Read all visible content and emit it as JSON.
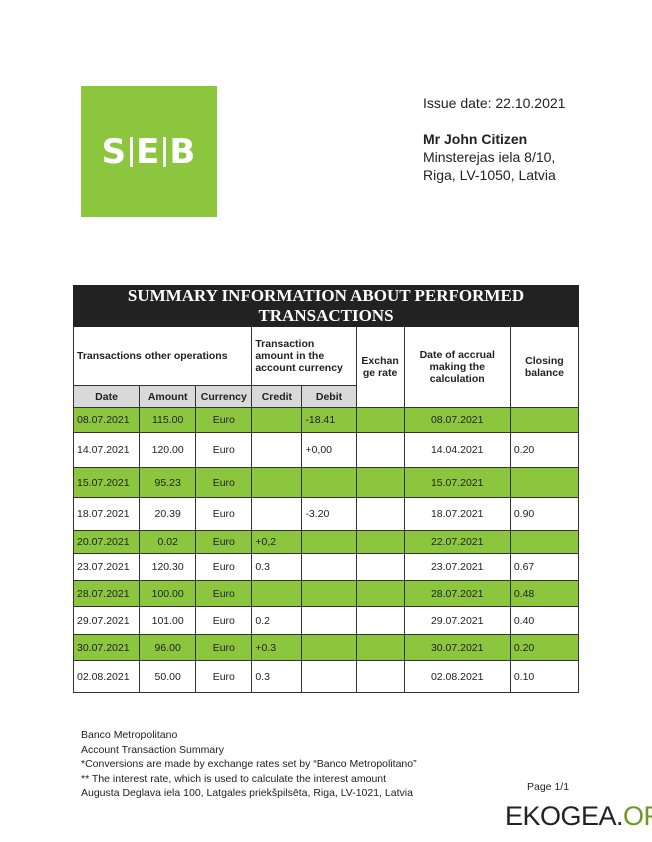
{
  "logo": {
    "text": "SEB",
    "color": "#8cc63f"
  },
  "header": {
    "issue_date": "Issue date: 22.10.2021",
    "name": "Mr John Citizen",
    "address_line1": "Minsterejas iela 8/10,",
    "address_line2": "Riga, LV-1050, Latvia"
  },
  "table": {
    "title": "SUMMARY INFORMATION ABOUT PERFORMED TRANSACTIONS",
    "group_headers": {
      "transactions": "Transactions other operations",
      "amount_account": "Transaction amount in the account currency",
      "exchange_rate": "Exchan ge rate",
      "date_accrual": "Date of accrual making the calculation",
      "closing_balance": "Closing balance"
    },
    "columns": [
      "Date",
      "Amount",
      "Currency",
      "Credit",
      "Debit"
    ],
    "rows": [
      {
        "date": "08.07.2021",
        "amount": "115.00",
        "currency": "Euro",
        "credit": "",
        "debit": "-18.41",
        "rate": "",
        "accrual": "08.07.2021",
        "balance": ""
      },
      {
        "date": "14.07.2021",
        "amount": "120.00",
        "currency": "Euro",
        "credit": "",
        "debit": "+0,00",
        "rate": "",
        "accrual": "14.04.2021",
        "balance": "0.20"
      },
      {
        "date": "15.07.2021",
        "amount": "95.23",
        "currency": "Euro",
        "credit": "",
        "debit": "",
        "rate": "",
        "accrual": "15.07.2021",
        "balance": ""
      },
      {
        "date": "18.07.2021",
        "amount": "20.39",
        "currency": "Euro",
        "credit": "",
        "debit": "-3.20",
        "rate": "",
        "accrual": "18.07.2021",
        "balance": "0.90"
      },
      {
        "date": "20.07.2021",
        "amount": "0.02",
        "currency": "Euro",
        "credit": "+0,2",
        "debit": "",
        "rate": "",
        "accrual": "22.07.2021",
        "balance": ""
      },
      {
        "date": "23.07.2021",
        "amount": "120.30",
        "currency": "Euro",
        "credit": "0.3",
        "debit": "",
        "rate": "",
        "accrual": "23.07.2021",
        "balance": "0.67"
      },
      {
        "date": "28.07.2021",
        "amount": "100.00",
        "currency": "Euro",
        "credit": "",
        "debit": "",
        "rate": "",
        "accrual": "28.07.2021",
        "balance": "0.48"
      },
      {
        "date": "29.07.2021",
        "amount": "101.00",
        "currency": "Euro",
        "credit": "0.2",
        "debit": "",
        "rate": "",
        "accrual": "29.07.2021",
        "balance": "0.40"
      },
      {
        "date": "30.07.2021",
        "amount": "96.00",
        "currency": "Euro",
        "credit": "+0.3",
        "debit": "",
        "rate": "",
        "accrual": "30.07.2021",
        "balance": "0.20"
      },
      {
        "date": "02.08.2021",
        "amount": "50.00",
        "currency": "Euro",
        "credit": "0.3",
        "debit": "",
        "rate": "",
        "accrual": "02.08.2021",
        "balance": "0.10"
      }
    ]
  },
  "footer": {
    "lines": [
      "Banco Metropolitano",
      "Account Transaction Summary",
      "*Conversions are made by exchange rates set by “Banco Metropolitano”",
      "** The interest rate, which is used to calculate the interest amount",
      "Augusta Deglava iela 100, Latgales priekšpilsēta, Riga, LV-1021, Latvia"
    ],
    "page": "Page 1/1"
  },
  "watermark": {
    "text1": "EKOGEA.",
    "text2": "ORG"
  }
}
